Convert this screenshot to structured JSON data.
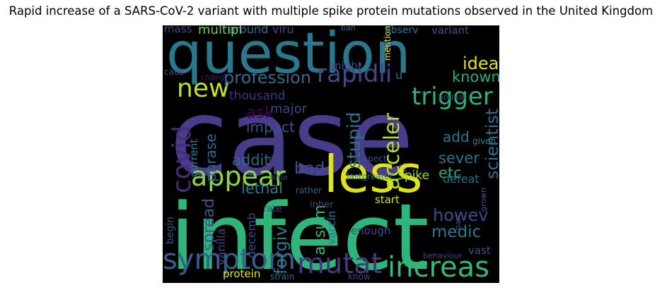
{
  "title": "Rapid increase of a SARS-CoV-2 variant with multiple spike protein mutations observed in the United Kingdom",
  "colors": {
    "background": "#000000",
    "purple": "#482f85",
    "dark_purple": "#45135f",
    "indigo": "#3f3f8c",
    "blue": "#31688e",
    "teal": "#25838e",
    "teal_green": "#21908d",
    "green": "#2fb47c",
    "light_green": "#7ad151",
    "yellow": "#d9e21b"
  },
  "words": [
    {
      "text": "case",
      "color": "#473d8b"
    },
    {
      "text": "infect",
      "color": "#2fb47c"
    },
    {
      "text": "question",
      "color": "#2a788e"
    },
    {
      "text": "less",
      "color": "#dde318"
    },
    {
      "text": "appear",
      "color": "#8fd744"
    },
    {
      "text": "new",
      "color": "#c2df23"
    },
    {
      "text": "symptom",
      "color": "#355f8d"
    },
    {
      "text": "increas",
      "color": "#35b779"
    },
    {
      "text": "mutat",
      "color": "#44397e"
    },
    {
      "text": "rapidli",
      "color": "#3e4a89"
    },
    {
      "text": "trigger",
      "color": "#2db27d"
    },
    {
      "text": "covid",
      "color": "#472c7a"
    },
    {
      "text": "profession",
      "color": "#31688e"
    },
    {
      "text": "ideal",
      "color": "#dde318"
    },
    {
      "text": "known",
      "color": "#27ad81"
    },
    {
      "text": "acceler",
      "color": "#b5de2b"
    },
    {
      "text": "stupid",
      "color": "#2c728e"
    },
    {
      "text": "ask",
      "color": "#440154"
    },
    {
      "text": "impact",
      "color": "#3b528b"
    },
    {
      "text": "phrase",
      "color": "#31688e"
    },
    {
      "text": "bad",
      "color": "#3b528b"
    },
    {
      "text": "addit",
      "color": "#31688e"
    },
    {
      "text": "lethal",
      "color": "#29798e"
    },
    {
      "text": "assum",
      "color": "#35b779"
    },
    {
      "text": "spread",
      "color": "#38588c"
    },
    {
      "text": "forgiv",
      "color": "#2a788e"
    },
    {
      "text": "howev",
      "color": "#3e4a89"
    },
    {
      "text": "medic",
      "color": "#2a788e"
    },
    {
      "text": "scientist",
      "color": "#2e6e8e"
    },
    {
      "text": "sever",
      "color": "#2c728e"
    },
    {
      "text": "etc",
      "color": "#27ad81"
    },
    {
      "text": "add",
      "color": "#29798e"
    },
    {
      "text": "spike",
      "color": "#a0da39"
    },
    {
      "text": "start",
      "color": "#c8e020"
    },
    {
      "text": "defeat",
      "color": "#2c728e"
    },
    {
      "text": "current",
      "color": "#287c8e"
    },
    {
      "text": "thousand",
      "color": "#46327e"
    },
    {
      "text": "major",
      "color": "#3f4788"
    },
    {
      "text": "vanilla",
      "color": "#414487"
    },
    {
      "text": "decemb",
      "color": "#3e4a89"
    },
    {
      "text": "protein",
      "color": "#e5e419"
    },
    {
      "text": "vaccin",
      "color": "#2a788e"
    },
    {
      "text": "enough",
      "color": "#3e4a89"
    },
    {
      "text": "vast",
      "color": "#3b528b"
    },
    {
      "text": "begin",
      "color": "#3b528b"
    },
    {
      "text": "rate",
      "color": "#3f4788"
    },
    {
      "text": "behaviour",
      "color": "#3f4788"
    },
    {
      "text": "strain",
      "color": "#31688e"
    },
    {
      "text": "know",
      "color": "#3f4788"
    },
    {
      "text": "part",
      "color": "#3b528b"
    },
    {
      "text": "grown",
      "color": "#3b528b"
    },
    {
      "text": "inher",
      "color": "#3e4a89"
    },
    {
      "text": "rather",
      "color": "#375a8c"
    },
    {
      "text": "lastgreater",
      "color": "#2a788e"
    },
    {
      "text": "time",
      "color": "#3f4788"
    },
    {
      "text": "got",
      "color": "#3e4a89"
    },
    {
      "text": "suspect",
      "color": "#3e4a89"
    },
    {
      "text": "given",
      "color": "#238a8d"
    },
    {
      "text": "normal",
      "color": "#3f4788"
    },
    {
      "text": "mention",
      "color": "#fde725"
    },
    {
      "text": "u",
      "color": "#2c728e"
    },
    {
      "text": "chang",
      "color": "#481668"
    },
    {
      "text": "caus",
      "color": "#3b528b"
    },
    {
      "text": "might",
      "color": "#3e4a89"
    },
    {
      "text": "observ",
      "color": "#2c728e"
    },
    {
      "text": "variant",
      "color": "#3b528b"
    },
    {
      "text": "ban",
      "color": "#31688e"
    },
    {
      "text": "viru",
      "color": "#3e4a89"
    },
    {
      "text": "around",
      "color": "#31688e"
    },
    {
      "text": "multipl",
      "color": "#6ccd5a"
    },
    {
      "text": "mass",
      "color": "#3f4788"
    }
  ]
}
